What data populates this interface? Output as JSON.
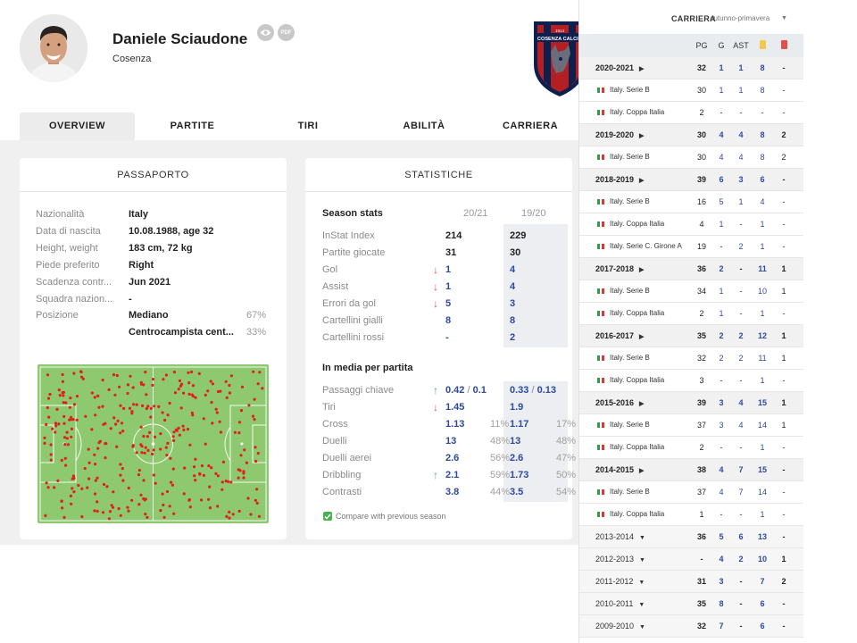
{
  "player": {
    "name": "Daniele Sciaudone",
    "team": "Cosenza",
    "pdf_label": "PDF",
    "crest_text": "COSENZA CALCIO",
    "crest_year": "1914"
  },
  "tabs": [
    "OVERVIEW",
    "PARTITE",
    "TIRI",
    "ABILITÀ",
    "CARRIERA"
  ],
  "passport": {
    "title": "PASSAPORTO",
    "rows": [
      {
        "label": "Nazionalità",
        "value": "Italy"
      },
      {
        "label": "Data di nascita",
        "value": "10.08.1988, age 32"
      },
      {
        "label": "Height, weight",
        "value": "183 cm, 72 kg"
      },
      {
        "label": "Piede preferito",
        "value": "Right"
      },
      {
        "label": "Scadenza contr...",
        "value": "Jun 2021"
      },
      {
        "label": "Squadra nazion...",
        "value": "-"
      },
      {
        "label": "Posizione",
        "value": "Mediano",
        "pct": "67%"
      },
      {
        "label": "",
        "value": "Centrocampista cent...",
        "pct": "33%"
      }
    ]
  },
  "stats": {
    "title": "STATISTICHE",
    "season_header": "Season stats",
    "col1": "20/21",
    "col2": "19/20",
    "season_rows": [
      {
        "label": "InStat Index",
        "v1": "214",
        "v2": "229"
      },
      {
        "label": "Partite giocate",
        "v1": "31",
        "v2": "30"
      },
      {
        "label": "Gol",
        "v1": "1",
        "v2": "4",
        "trend": "down"
      },
      {
        "label": "Assist",
        "v1": "1",
        "v2": "4",
        "trend": "down"
      },
      {
        "label": "Errori da gol",
        "v1": "5",
        "v2": "3",
        "trend": "down"
      },
      {
        "label": "Cartellini gialli",
        "v1": "8",
        "v2": "8"
      },
      {
        "label": "Cartellini rossi",
        "v1": "-",
        "v2": "2"
      }
    ],
    "per_match_header": "In media per partita",
    "per_match_rows": [
      {
        "label": "Passaggi chiave",
        "v1a": "0.42",
        "v1b": "0.1",
        "v2a": "0.33",
        "v2b": "0.13",
        "trend": "up"
      },
      {
        "label": "Tiri",
        "v1": "1.45",
        "v2": "1.9",
        "trend": "down"
      },
      {
        "label": "Cross",
        "v1": "1.13",
        "p1": "11%",
        "v2": "1.17",
        "p2": "17%"
      },
      {
        "label": "Duelli",
        "v1": "13",
        "p1": "48%",
        "v2": "13",
        "p2": "48%"
      },
      {
        "label": "Duelli aerei",
        "v1": "2.6",
        "p1": "56%",
        "v2": "2.6",
        "p2": "47%"
      },
      {
        "label": "Dribbling",
        "v1": "2.1",
        "p1": "59%",
        "v2": "1.73",
        "p2": "50%",
        "trend": "up"
      },
      {
        "label": "Contrasti",
        "v1": "3.8",
        "p1": "44%",
        "v2": "3.5",
        "p2": "54%"
      }
    ],
    "compare_label": "Compare with previous season"
  },
  "career": {
    "title": "CARRIERA",
    "select_value": "autunno-primavera",
    "headers": [
      "PG",
      "G",
      "AST"
    ],
    "rows": [
      {
        "type": "season",
        "label": "2020-2021",
        "pg": "32",
        "g": "1",
        "ast": "1",
        "y": "8",
        "r": "-",
        "state": "expanded"
      },
      {
        "type": "comp",
        "label": "Italy. Serie B",
        "pg": "30",
        "g": "1",
        "ast": "1",
        "y": "8",
        "r": "-"
      },
      {
        "type": "comp",
        "label": "Italy. Coppa Italia",
        "pg": "2",
        "g": "-",
        "ast": "-",
        "y": "-",
        "r": "-"
      },
      {
        "type": "season",
        "label": "2019-2020",
        "pg": "30",
        "g": "4",
        "ast": "4",
        "y": "8",
        "r": "2",
        "state": "expanded"
      },
      {
        "type": "comp",
        "label": "Italy. Serie B",
        "pg": "30",
        "g": "4",
        "ast": "4",
        "y": "8",
        "r": "2"
      },
      {
        "type": "season",
        "label": "2018-2019",
        "pg": "39",
        "g": "6",
        "ast": "3",
        "y": "6",
        "r": "-",
        "state": "expanded"
      },
      {
        "type": "comp",
        "label": "Italy. Serie B",
        "pg": "16",
        "g": "5",
        "ast": "1",
        "y": "4",
        "r": "-"
      },
      {
        "type": "comp",
        "label": "Italy. Coppa Italia",
        "pg": "4",
        "g": "1",
        "ast": "-",
        "y": "1",
        "r": "-"
      },
      {
        "type": "comp",
        "label": "Italy. Serie C. Girone A",
        "pg": "19",
        "g": "-",
        "ast": "2",
        "y": "1",
        "r": "-"
      },
      {
        "type": "season",
        "label": "2017-2018",
        "pg": "36",
        "g": "2",
        "ast": "-",
        "y": "11",
        "r": "1",
        "state": "expanded"
      },
      {
        "type": "comp",
        "label": "Italy. Serie B",
        "pg": "34",
        "g": "1",
        "ast": "-",
        "y": "10",
        "r": "1"
      },
      {
        "type": "comp",
        "label": "Italy. Coppa Italia",
        "pg": "2",
        "g": "1",
        "ast": "-",
        "y": "1",
        "r": "-"
      },
      {
        "type": "season",
        "label": "2016-2017",
        "pg": "35",
        "g": "2",
        "ast": "2",
        "y": "12",
        "r": "1",
        "state": "expanded"
      },
      {
        "type": "comp",
        "label": "Italy. Serie B",
        "pg": "32",
        "g": "2",
        "ast": "2",
        "y": "11",
        "r": "1"
      },
      {
        "type": "comp",
        "label": "Italy. Coppa Italia",
        "pg": "3",
        "g": "-",
        "ast": "-",
        "y": "1",
        "r": "-"
      },
      {
        "type": "season",
        "label": "2015-2016",
        "pg": "39",
        "g": "3",
        "ast": "4",
        "y": "15",
        "r": "1",
        "state": "expanded"
      },
      {
        "type": "comp",
        "label": "Italy. Serie B",
        "pg": "37",
        "g": "3",
        "ast": "4",
        "y": "14",
        "r": "1"
      },
      {
        "type": "comp",
        "label": "Italy. Coppa Italia",
        "pg": "2",
        "g": "-",
        "ast": "-",
        "y": "1",
        "r": "-"
      },
      {
        "type": "season",
        "label": "2014-2015",
        "pg": "38",
        "g": "4",
        "ast": "7",
        "y": "15",
        "r": "-",
        "state": "expanded"
      },
      {
        "type": "comp",
        "label": "Italy. Serie B",
        "pg": "37",
        "g": "4",
        "ast": "7",
        "y": "14",
        "r": "-"
      },
      {
        "type": "comp",
        "label": "Italy. Coppa Italia",
        "pg": "1",
        "g": "-",
        "ast": "-",
        "y": "1",
        "r": "-"
      },
      {
        "type": "season",
        "label": "2013-2014",
        "pg": "36",
        "g": "5",
        "ast": "6",
        "y": "13",
        "r": "-",
        "state": "collapsed"
      },
      {
        "type": "season",
        "label": "2012-2013",
        "pg": "-",
        "g": "4",
        "ast": "2",
        "y": "10",
        "r": "1",
        "state": "collapsed"
      },
      {
        "type": "season",
        "label": "2011-2012",
        "pg": "31",
        "g": "3",
        "ast": "-",
        "y": "7",
        "r": "2",
        "state": "collapsed"
      },
      {
        "type": "season",
        "label": "2010-2011",
        "pg": "35",
        "g": "8",
        "ast": "-",
        "y": "6",
        "r": "-",
        "state": "collapsed"
      },
      {
        "type": "season",
        "label": "2009-2010",
        "pg": "32",
        "g": "7",
        "ast": "-",
        "y": "6",
        "r": "-",
        "state": "collapsed"
      }
    ]
  },
  "colors": {
    "accent_blue": "#2d4a9c",
    "pitch": "#8ec96f",
    "dot": "#e0201d",
    "yellow_card": "#f2c94c",
    "red_card": "#e0524a",
    "trend_down": "#d9534f",
    "trend_up": "#4caf50"
  }
}
